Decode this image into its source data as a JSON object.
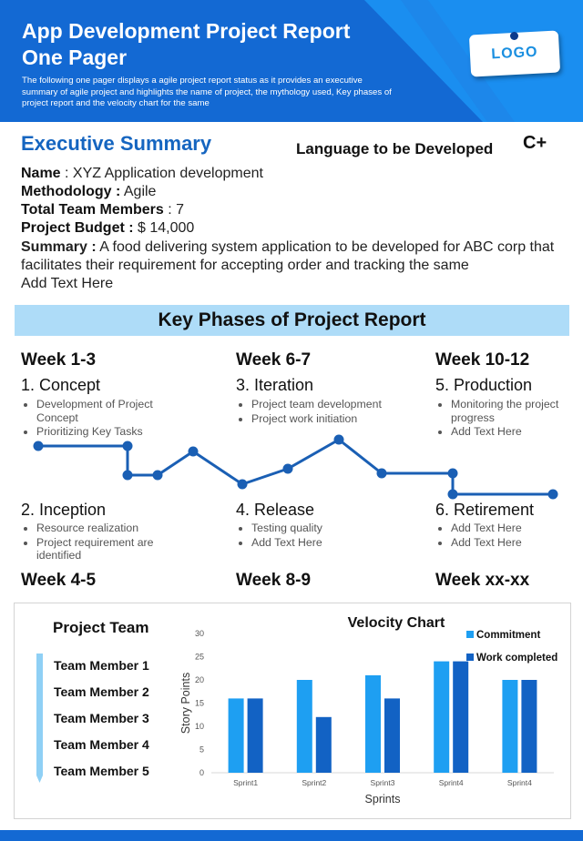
{
  "header": {
    "title_line1": "App Development Project Report",
    "title_line2": "One Pager",
    "description": "The following one pager displays a agile project report status as it provides an executive  summary of agile project and highlights the name of project, the mythology used, Key phases of project report and the velocity  chart for the same",
    "logo": "LOGO"
  },
  "executive": {
    "title": "Executive Summary",
    "language_label": "Language to be Developed",
    "language_value": "C+",
    "name_label": "Name",
    "name_value": ": XYZ Application development",
    "methodology_label": "Methodology :",
    "methodology_value": " Agile",
    "team_label": "Total Team Members",
    "team_value": " : 7",
    "budget_label": "Project Budget :",
    "budget_value": " $ 14,000",
    "summary_label": "Summary :",
    "summary_value": "  A  food delivering system  application to be developed for ABC corp that facilitates their requirement for accepting order and tracking the same",
    "add_text": "Add Text Here"
  },
  "phases": {
    "banner": "Key Phases of Project Report",
    "top": [
      {
        "week": "Week 1-3",
        "title": "1. Concept",
        "bullets": [
          "Development of Project Concept",
          "Prioritizing Key Tasks"
        ]
      },
      {
        "week": "Week 6-7",
        "title": "3. Iteration",
        "bullets": [
          "Project team development",
          "Project work initiation"
        ]
      },
      {
        "week": "Week 10-12",
        "title": "5. Production",
        "bullets": [
          "Monitoring the project progress",
          "Add Text Here"
        ]
      }
    ],
    "bottom": [
      {
        "week": "Week 4-5",
        "title": "2. Inception",
        "bullets": [
          "Resource realization",
          "Project requirement are identified"
        ]
      },
      {
        "week": "Week 8-9",
        "title": "4. Release",
        "bullets": [
          "Testing quality",
          "Add Text Here"
        ]
      },
      {
        "week": "Week xx-xx",
        "title": "6. Retirement",
        "bullets": [
          "Add Text Here",
          "Add Text Here"
        ]
      }
    ]
  },
  "team": {
    "title": "Project Team",
    "members": [
      "Team Member 1",
      "Team Member 2",
      "Team Member 3",
      "Team Member 4",
      "Team Member 5"
    ]
  },
  "colors": {
    "primary": "#1369d3",
    "commitment": "#1e9ff2",
    "work_completed": "#1262c4",
    "banner": "#aedcf8"
  },
  "chart_data": {
    "type": "bar",
    "title": "Velocity  Chart",
    "xlabel": "Sprints",
    "ylabel": "Story Points",
    "categories": [
      "Sprint1",
      "Sprint2",
      "Sprint3",
      "Sprint4",
      "Sprint4"
    ],
    "ylim": [
      0,
      30
    ],
    "yticks": [
      0,
      5,
      10,
      15,
      20,
      25,
      30
    ],
    "series": [
      {
        "name": "Commitment",
        "values": [
          16,
          20,
          21,
          24,
          20
        ]
      },
      {
        "name": "Work completed",
        "values": [
          16,
          12,
          16,
          24,
          20
        ]
      }
    ],
    "legend": "top-right"
  }
}
